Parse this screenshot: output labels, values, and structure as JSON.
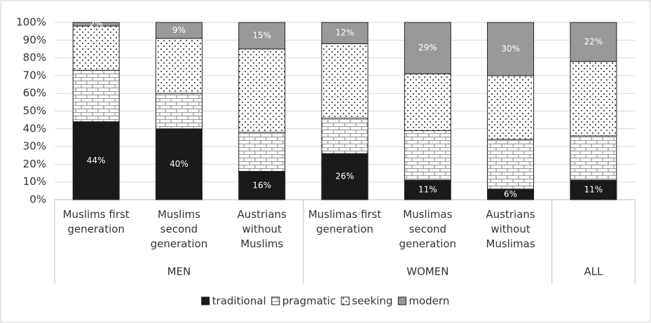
{
  "chart_data": {
    "type": "stacked_bar",
    "categories": [
      "Muslims first generation",
      "Muslims second generation",
      "Austrians without Muslims",
      "Muslimas first generation",
      "Muslimas second generation",
      "Austrians without Muslimas",
      ""
    ],
    "groups": [
      {
        "name": "MEN",
        "size": 3
      },
      {
        "name": "WOMEN",
        "size": 3
      },
      {
        "name": "ALL",
        "size": 1
      }
    ],
    "series": [
      {
        "name": "traditional",
        "color": "#1a1a1a",
        "pattern": "solid",
        "values": [
          44,
          40,
          16,
          26,
          11,
          6,
          11
        ],
        "value_labels": [
          "44%",
          "40%",
          "16%",
          "26%",
          "11%",
          "6%",
          "11%"
        ]
      },
      {
        "name": "pragmatic",
        "color": "#ffffff",
        "pattern": "brick",
        "values": [
          29,
          20,
          22,
          20,
          28,
          28,
          25
        ]
      },
      {
        "name": "seeking",
        "color": "#ffffff",
        "pattern": "dots",
        "values": [
          25,
          31,
          47,
          42,
          32,
          36,
          42
        ]
      },
      {
        "name": "modern",
        "color": "#999999",
        "pattern": "solid",
        "values": [
          2,
          9,
          15,
          12,
          29,
          30,
          22
        ],
        "value_labels": [
          "2%",
          "9%",
          "15%",
          "12%",
          "29%",
          "30%",
          "22%"
        ]
      }
    ],
    "ylim": [
      0,
      100
    ],
    "yticks": [
      {
        "value": 0,
        "label": "0%"
      },
      {
        "value": 10,
        "label": "10%"
      },
      {
        "value": 20,
        "label": "20%"
      },
      {
        "value": 30,
        "label": "30%"
      },
      {
        "value": 40,
        "label": "40%"
      },
      {
        "value": 50,
        "label": "50%"
      },
      {
        "value": 60,
        "label": "60%"
      },
      {
        "value": 70,
        "label": "70%"
      },
      {
        "value": 80,
        "label": "80%"
      },
      {
        "value": 90,
        "label": "90%"
      },
      {
        "value": 100,
        "label": "100%"
      }
    ],
    "grid": true,
    "legend": "bottom"
  }
}
